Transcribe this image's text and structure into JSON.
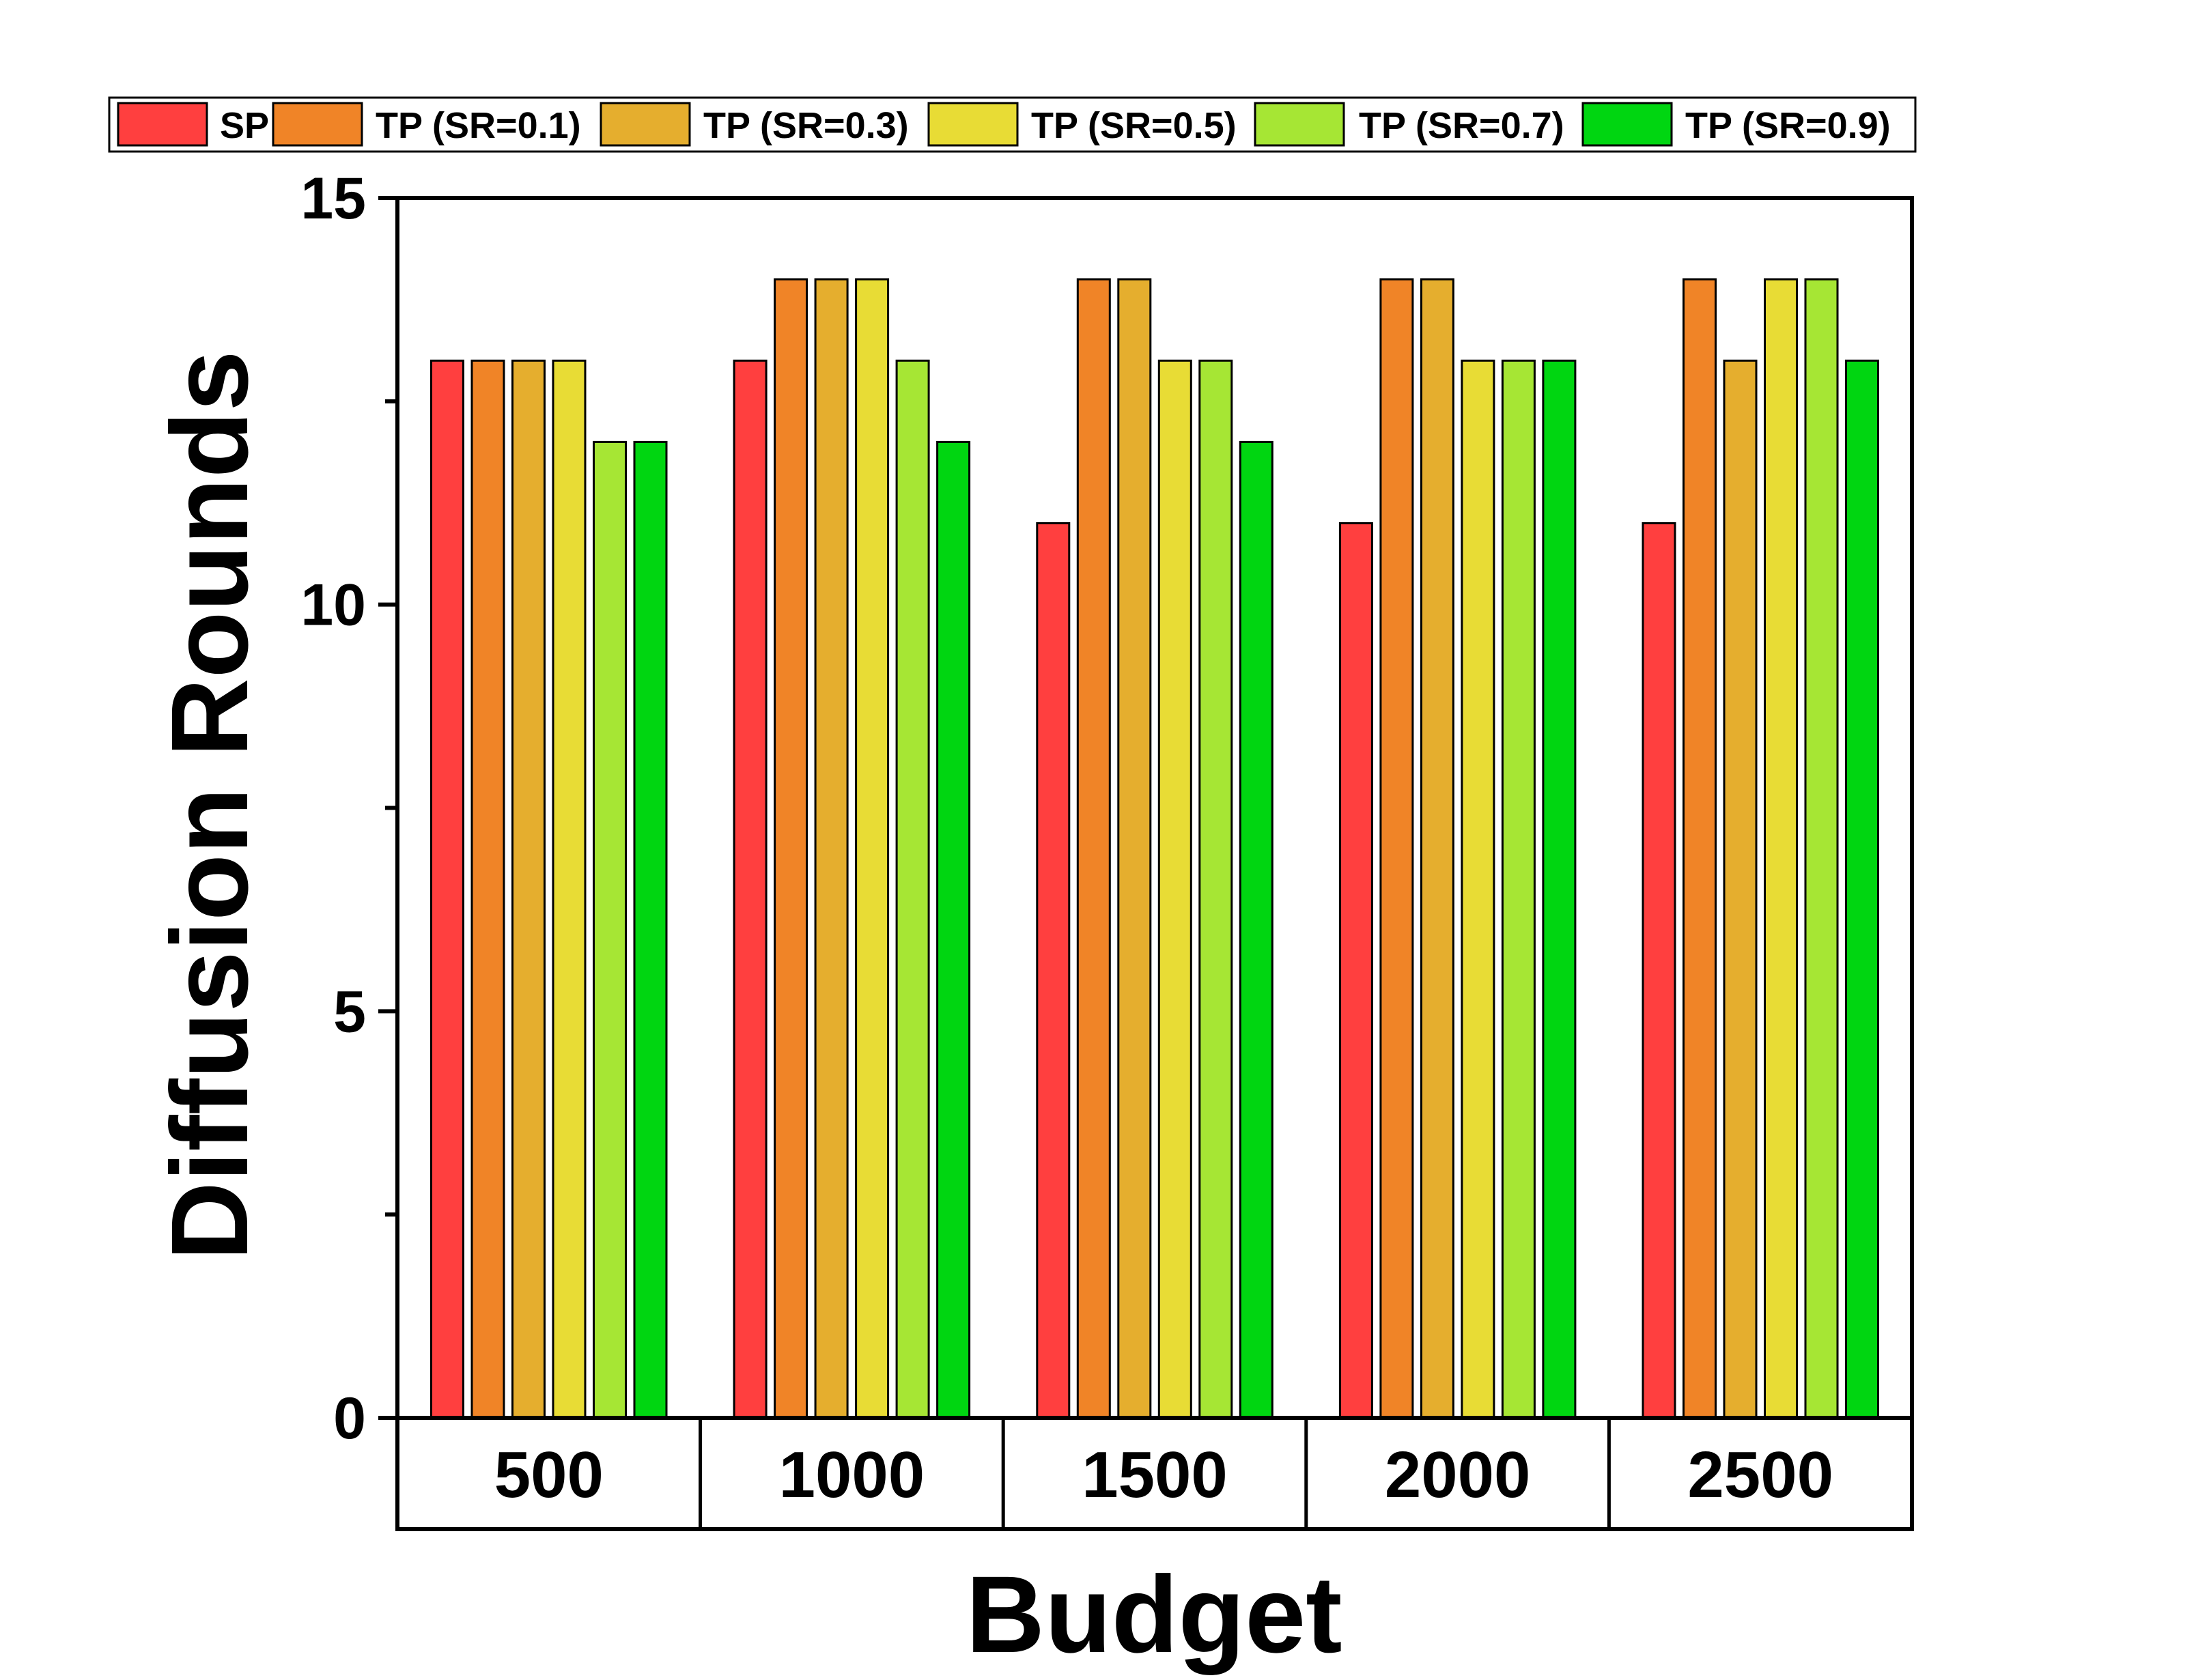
{
  "chart_data": {
    "type": "bar",
    "title": "",
    "xlabel": "Budget",
    "ylabel": "Diffusion Rounds",
    "categories": [
      "500",
      "1000",
      "1500",
      "2000",
      "2500"
    ],
    "ylim": [
      0,
      15
    ],
    "yticks": [
      0,
      5,
      10,
      15
    ],
    "legend_position": "top",
    "series": [
      {
        "name": "SP",
        "color": "#FF3F3F",
        "values": [
          13,
          13,
          11,
          11,
          11
        ]
      },
      {
        "name": "TP (SR=0.1)",
        "color": "#F08427",
        "values": [
          13,
          14,
          14,
          14,
          14
        ]
      },
      {
        "name": "TP (SR=0.3)",
        "color": "#E5AE2E",
        "values": [
          13,
          14,
          14,
          14,
          13
        ]
      },
      {
        "name": "TP (SR=0.5)",
        "color": "#E8DC35",
        "values": [
          13,
          14,
          13,
          13,
          14
        ]
      },
      {
        "name": "TP (SR=0.7)",
        "color": "#A6E634",
        "values": [
          12,
          13,
          13,
          13,
          14
        ]
      },
      {
        "name": "TP (SR=0.9)",
        "color": "#00D611",
        "values": [
          12,
          12,
          12,
          13,
          13
        ]
      }
    ]
  }
}
